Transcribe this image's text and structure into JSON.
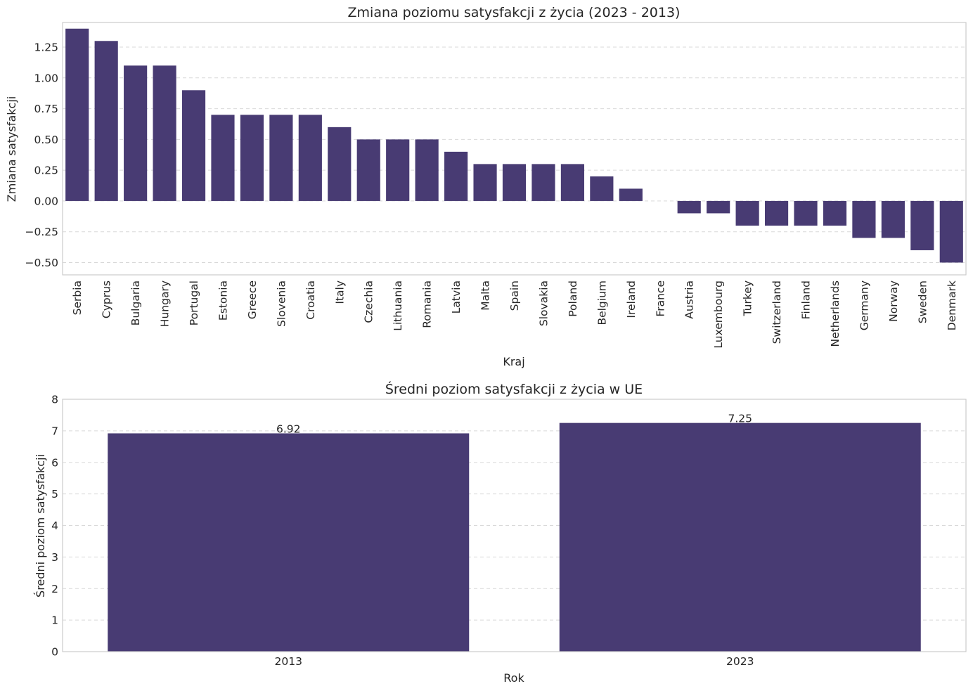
{
  "chart_data": [
    {
      "type": "bar",
      "title": "Zmiana poziomu satysfakcji z życia (2023 - 2013)",
      "xlabel": "Kraj",
      "ylabel": "Zmiana satysfakcji",
      "ylim": [
        -0.6,
        1.45
      ],
      "yticks": [
        -0.5,
        -0.25,
        0.0,
        0.25,
        0.5,
        0.75,
        1.0,
        1.25
      ],
      "ytick_labels": [
        "−0.50",
        "−0.25",
        "0.00",
        "0.25",
        "0.50",
        "0.75",
        "1.00",
        "1.25"
      ],
      "grid": true,
      "bar_color": "#483b73",
      "categories": [
        "Serbia",
        "Cyprus",
        "Bulgaria",
        "Hungary",
        "Portugal",
        "Estonia",
        "Greece",
        "Slovenia",
        "Croatia",
        "Italy",
        "Czechia",
        "Lithuania",
        "Romania",
        "Latvia",
        "Malta",
        "Spain",
        "Slovakia",
        "Poland",
        "Belgium",
        "Ireland",
        "France",
        "Austria",
        "Luxembourg",
        "Turkey",
        "Switzerland",
        "Finland",
        "Netherlands",
        "Germany",
        "Norway",
        "Sweden",
        "Denmark"
      ],
      "values": [
        1.4,
        1.3,
        1.1,
        1.1,
        0.9,
        0.7,
        0.7,
        0.7,
        0.7,
        0.6,
        0.5,
        0.5,
        0.5,
        0.4,
        0.3,
        0.3,
        0.3,
        0.3,
        0.2,
        0.1,
        0.0,
        -0.1,
        -0.1,
        -0.2,
        -0.2,
        -0.2,
        -0.2,
        -0.3,
        -0.3,
        -0.4,
        -0.5
      ]
    },
    {
      "type": "bar",
      "title": "Średni poziom satysfakcji z życia w UE",
      "xlabel": "Rok",
      "ylabel": "Średni poziom satysfakcji",
      "ylim": [
        0,
        8
      ],
      "yticks": [
        0,
        1,
        2,
        3,
        4,
        5,
        6,
        7,
        8
      ],
      "ytick_labels": [
        "0",
        "1",
        "2",
        "3",
        "4",
        "5",
        "6",
        "7",
        "8"
      ],
      "grid": true,
      "bar_color": "#483b73",
      "categories": [
        "2013",
        "2023"
      ],
      "values": [
        6.92,
        7.25
      ],
      "data_labels": [
        "6.92",
        "7.25"
      ]
    }
  ]
}
